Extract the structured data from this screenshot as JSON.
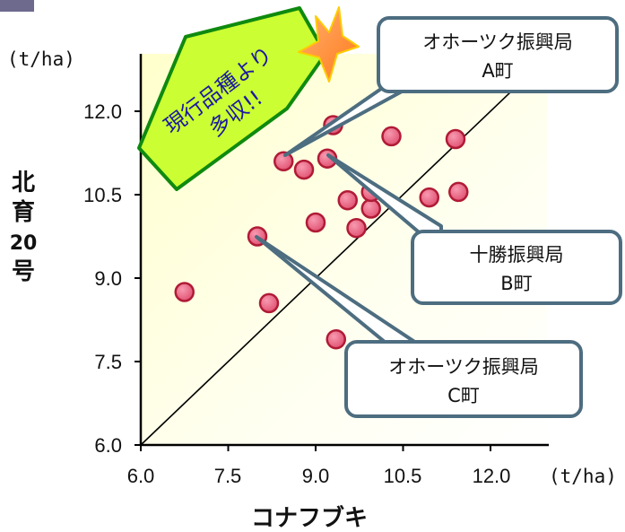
{
  "chart_data": {
    "type": "scatter",
    "xlabel": "コナフブキ",
    "ylabel": [
      "北",
      "育",
      "20",
      "号"
    ],
    "x_unit": "(t/ha)",
    "y_unit": "(t/ha)",
    "xlim": [
      6.0,
      12.5
    ],
    "ylim": [
      6.0,
      12.0
    ],
    "x_ticks": [
      "6.0",
      "7.5",
      "9.0",
      "10.5",
      "12.0"
    ],
    "y_ticks": [
      "6.0",
      "7.5",
      "9.0",
      "10.5",
      "12.0"
    ],
    "grid": false,
    "reference_line": "y = x",
    "points": [
      {
        "x": 6.75,
        "y": 8.75
      },
      {
        "x": 8.0,
        "y": 9.75
      },
      {
        "x": 8.2,
        "y": 8.55
      },
      {
        "x": 8.45,
        "y": 11.1
      },
      {
        "x": 8.8,
        "y": 10.95
      },
      {
        "x": 9.0,
        "y": 10.0
      },
      {
        "x": 9.2,
        "y": 11.15
      },
      {
        "x": 9.3,
        "y": 11.75
      },
      {
        "x": 9.35,
        "y": 7.9
      },
      {
        "x": 9.55,
        "y": 10.4
      },
      {
        "x": 9.7,
        "y": 9.9
      },
      {
        "x": 9.95,
        "y": 10.25
      },
      {
        "x": 9.95,
        "y": 10.55
      },
      {
        "x": 10.3,
        "y": 11.55
      },
      {
        "x": 10.95,
        "y": 10.45
      },
      {
        "x": 11.4,
        "y": 11.5
      },
      {
        "x": 11.45,
        "y": 10.55
      }
    ],
    "annotations": [
      {
        "lines": [
          "オホーツク振興局",
          "A町"
        ],
        "x": 8.45,
        "y": 11.1
      },
      {
        "lines": [
          "十勝振興局",
          "B町"
        ],
        "x": 9.2,
        "y": 11.15
      },
      {
        "lines": [
          "オホーツク振興局",
          "C町"
        ],
        "x": 8.0,
        "y": 9.75
      }
    ],
    "banner": [
      "現行品種より",
      "多収!!"
    ]
  }
}
